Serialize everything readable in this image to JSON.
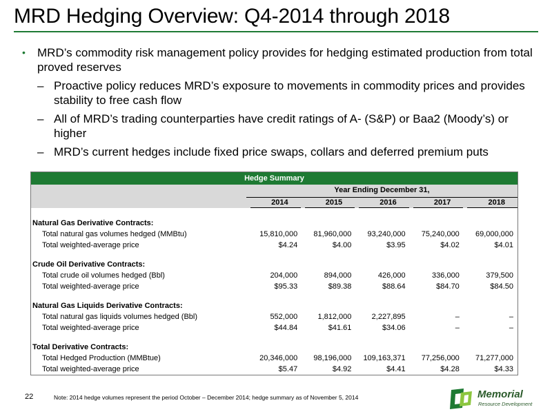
{
  "title": "MRD Hedging Overview: Q4-2014 through 2018",
  "bullets": {
    "main": "MRD’s commodity risk management policy provides for hedging estimated production from total proved reserves",
    "subs": [
      "Proactive policy reduces MRD’s exposure to movements in commodity prices and provides stability to free cash flow",
      "All of MRD’s trading counterparties have credit ratings of A- (S&P) or Baa2 (Moody’s) or higher",
      "MRD’s current hedges include fixed price swaps, collars and deferred premium puts"
    ]
  },
  "table": {
    "header": "Hedge Summary",
    "year_header": "Year Ending December 31,",
    "years": [
      "2014",
      "2015",
      "2016",
      "2017",
      "2018"
    ],
    "sections": [
      {
        "title": "Natural Gas Derivative Contracts:",
        "rows": [
          {
            "label": "Total natural gas volumes hedged (MMBtu)",
            "values": [
              "15,810,000",
              "81,960,000",
              "93,240,000",
              "75,240,000",
              "69,000,000"
            ]
          },
          {
            "label": "Total weighted-average price",
            "values": [
              "$4.24",
              "$4.00",
              "$3.95",
              "$4.02",
              "$4.01"
            ]
          }
        ]
      },
      {
        "title": "Crude Oil Derivative Contracts:",
        "rows": [
          {
            "label": "Total crude oil volumes hedged (Bbl)",
            "values": [
              "204,000",
              "894,000",
              "426,000",
              "336,000",
              "379,500"
            ]
          },
          {
            "label": "Total weighted-average price",
            "values": [
              "$95.33",
              "$89.38",
              "$88.64",
              "$84.70",
              "$84.50"
            ]
          }
        ]
      },
      {
        "title": "Natural Gas Liquids Derivative Contracts:",
        "rows": [
          {
            "label": "Total natural gas liquids volumes hedged (Bbl)",
            "values": [
              "552,000",
              "1,812,000",
              "2,227,895",
              "–",
              "–"
            ]
          },
          {
            "label": "Total weighted-average price",
            "values": [
              "$44.84",
              "$41.61",
              "$34.06",
              "–",
              "–"
            ]
          }
        ]
      },
      {
        "title": "Total Derivative Contracts:",
        "rows": [
          {
            "label": "Total Hedged Production (MMBtue)",
            "values": [
              "20,346,000",
              "98,196,000",
              "109,163,371",
              "77,256,000",
              "71,277,000"
            ]
          },
          {
            "label": "Total weighted-average price",
            "values": [
              "$5.47",
              "$4.92",
              "$4.41",
              "$4.28",
              "$4.33"
            ]
          }
        ]
      }
    ]
  },
  "footer": {
    "page_number": "22",
    "note": "Note: 2014 hedge volumes represent the period October – December 2014; hedge summary as of November 5, 2014"
  },
  "logo": {
    "name": "Memorial",
    "tagline": "Resource Development"
  },
  "colors": {
    "brand_green": "#1e7a33",
    "table_band": "#d9d9d9"
  }
}
